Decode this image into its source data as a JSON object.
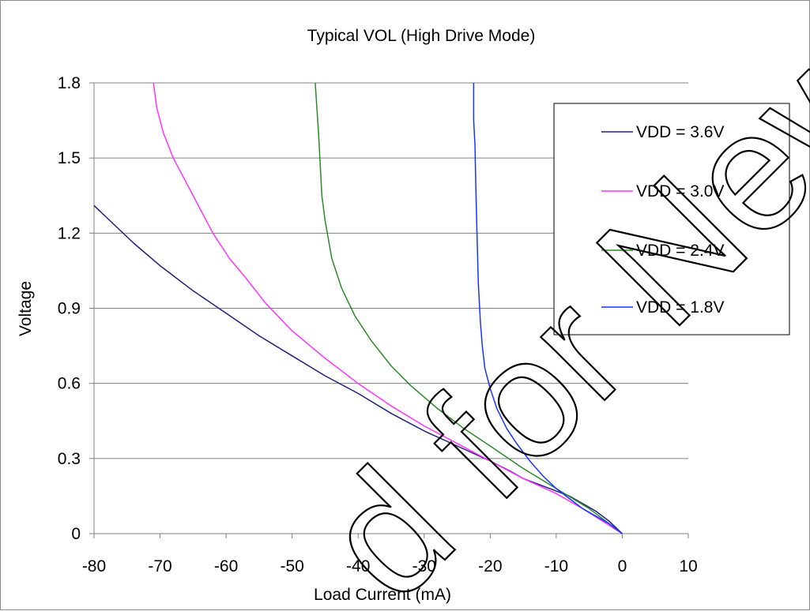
{
  "chart_data": {
    "type": "line",
    "title": "Typical VOL (High Drive Mode)",
    "xlabel": "Load Current (mA)",
    "ylabel": "Voltage",
    "xlim": [
      -80,
      10
    ],
    "ylim": [
      0,
      1.8
    ],
    "xticks": [
      -80,
      -70,
      -60,
      -50,
      -40,
      -30,
      -20,
      -10,
      0,
      10
    ],
    "yticks": [
      0,
      0.3,
      0.6,
      0.9,
      1.2,
      1.5,
      1.8
    ],
    "xtick_labels": [
      "-80",
      "-70",
      "-60",
      "-50",
      "-40",
      "-30",
      "-20",
      "-10",
      "0",
      "10"
    ],
    "ytick_labels": [
      "0",
      "0.3",
      "0.6",
      "0.9",
      "1.2",
      "1.5",
      "1.8"
    ],
    "grid": "horizontal",
    "legend_position": "right",
    "series": [
      {
        "name": "VDD = 3.6V",
        "color": "#1f1f7a",
        "points": [
          [
            -80,
            1.31
          ],
          [
            -74,
            1.16
          ],
          [
            -70,
            1.07
          ],
          [
            -65,
            0.97
          ],
          [
            -60,
            0.88
          ],
          [
            -55,
            0.79
          ],
          [
            -50,
            0.71
          ],
          [
            -45,
            0.63
          ],
          [
            -40,
            0.56
          ],
          [
            -35,
            0.48
          ],
          [
            -30,
            0.41
          ],
          [
            -25,
            0.35
          ],
          [
            -20,
            0.29
          ],
          [
            -17,
            0.25
          ],
          [
            -15,
            0.22
          ],
          [
            -12,
            0.19
          ],
          [
            -10,
            0.17
          ],
          [
            -8,
            0.15
          ],
          [
            -6,
            0.12
          ],
          [
            -4,
            0.09
          ],
          [
            -2,
            0.05
          ],
          [
            0,
            0
          ]
        ]
      },
      {
        "name": "VDD = 3.0V",
        "color": "#ff33ff",
        "points": [
          [
            -71,
            1.8
          ],
          [
            -70.5,
            1.7
          ],
          [
            -69.5,
            1.6
          ],
          [
            -68,
            1.5
          ],
          [
            -66,
            1.4
          ],
          [
            -64,
            1.3
          ],
          [
            -62,
            1.2
          ],
          [
            -59.5,
            1.1
          ],
          [
            -57,
            1.02
          ],
          [
            -54,
            0.92
          ],
          [
            -50,
            0.81
          ],
          [
            -45,
            0.7
          ],
          [
            -40,
            0.6
          ],
          [
            -35,
            0.51
          ],
          [
            -30,
            0.43
          ],
          [
            -25,
            0.36
          ],
          [
            -20,
            0.29
          ],
          [
            -15,
            0.22
          ],
          [
            -10,
            0.16
          ],
          [
            -6,
            0.1
          ],
          [
            -3,
            0.05
          ],
          [
            0,
            0
          ]
        ]
      },
      {
        "name": "VDD = 2.4V",
        "color": "#2a8a2a",
        "points": [
          [
            -46.5,
            1.8
          ],
          [
            -46,
            1.6
          ],
          [
            -45.7,
            1.45
          ],
          [
            -45.5,
            1.35
          ],
          [
            -45,
            1.25
          ],
          [
            -44,
            1.1
          ],
          [
            -42.5,
            0.98
          ],
          [
            -40.5,
            0.87
          ],
          [
            -38,
            0.77
          ],
          [
            -35,
            0.67
          ],
          [
            -32,
            0.59
          ],
          [
            -28,
            0.5
          ],
          [
            -24,
            0.42
          ],
          [
            -20,
            0.35
          ],
          [
            -15,
            0.26
          ],
          [
            -10,
            0.18
          ],
          [
            -5,
            0.1
          ],
          [
            0,
            0
          ]
        ]
      },
      {
        "name": "VDD = 1.8V",
        "color": "#1a33ff",
        "points": [
          [
            -22.5,
            1.8
          ],
          [
            -22.5,
            1.65
          ],
          [
            -22.3,
            1.55
          ],
          [
            -22.2,
            1.4
          ],
          [
            -22,
            1.2
          ],
          [
            -21.8,
            1.0
          ],
          [
            -21.5,
            0.85
          ],
          [
            -21.2,
            0.75
          ],
          [
            -20.8,
            0.66
          ],
          [
            -20,
            0.58
          ],
          [
            -19,
            0.5
          ],
          [
            -17.5,
            0.42
          ],
          [
            -16,
            0.36
          ],
          [
            -14,
            0.29
          ],
          [
            -12,
            0.23
          ],
          [
            -10,
            0.18
          ],
          [
            -8,
            0.14
          ],
          [
            -6,
            0.1
          ],
          [
            -4,
            0.07
          ],
          [
            -2,
            0.04
          ],
          [
            0,
            0
          ]
        ]
      }
    ]
  },
  "watermark": {
    "text": "d for New De",
    "color": "#000000"
  }
}
